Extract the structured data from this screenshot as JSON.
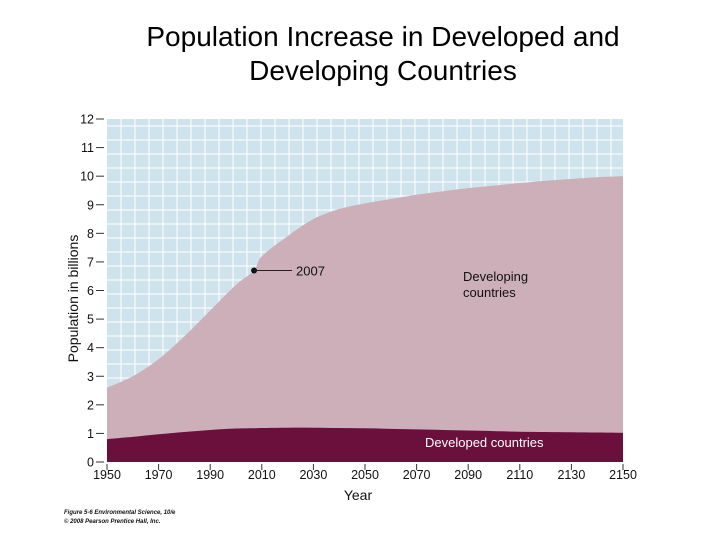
{
  "title_line1": "Population Increase in Developed and",
  "title_line2": "Developing Countries",
  "credit_line1": "Figure 5-6 Environmental Science, 10/e",
  "credit_line2": "© 2008 Pearson Prentice Hall, Inc.",
  "colors": {
    "background_grid": "#cfe3ec",
    "gridline": "#ffffff",
    "developing": "#cdafb9",
    "developed": "#6b0f3c"
  },
  "chart_data": {
    "type": "area",
    "xlabel": "Year",
    "ylabel": "Population in billions",
    "xlim": [
      1950,
      2150
    ],
    "ylim": [
      0,
      12
    ],
    "x_ticks": [
      "1950",
      "1970",
      "1990",
      "2010",
      "2030",
      "2050",
      "2070",
      "2090",
      "2110",
      "2130",
      "2150"
    ],
    "y_ticks": [
      "0",
      "1",
      "2",
      "3",
      "4",
      "5",
      "6",
      "7",
      "8",
      "9",
      "10",
      "11",
      "12"
    ],
    "grid": true,
    "stacked": true,
    "x": [
      1950,
      1960,
      1970,
      1980,
      1990,
      2000,
      2007,
      2010,
      2020,
      2030,
      2040,
      2050,
      2060,
      2070,
      2080,
      2090,
      2100,
      2110,
      2120,
      2130,
      2140,
      2150
    ],
    "series": [
      {
        "name": "Developed countries",
        "total_values": [
          0.8,
          0.88,
          0.97,
          1.05,
          1.12,
          1.17,
          1.18,
          1.19,
          1.2,
          1.2,
          1.19,
          1.18,
          1.16,
          1.14,
          1.12,
          1.1,
          1.08,
          1.06,
          1.05,
          1.04,
          1.03,
          1.02
        ]
      },
      {
        "name": "Developing countries",
        "total_values": [
          2.6,
          3.0,
          3.6,
          4.4,
          5.3,
          6.2,
          6.7,
          7.2,
          7.9,
          8.5,
          8.85,
          9.05,
          9.2,
          9.35,
          9.47,
          9.58,
          9.67,
          9.76,
          9.84,
          9.9,
          9.96,
          10.0
        ]
      }
    ],
    "annotations": [
      {
        "text": "2007",
        "x": 2007,
        "y": 6.7
      },
      {
        "text": "Developing\ncountries"
      },
      {
        "text": "Developed countries"
      }
    ]
  }
}
